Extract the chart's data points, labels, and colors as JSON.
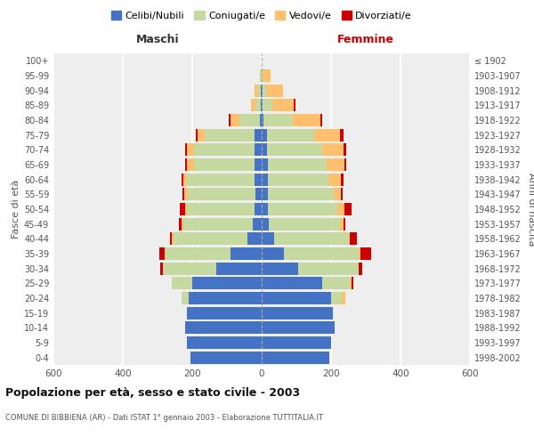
{
  "age_groups": [
    "0-4",
    "5-9",
    "10-14",
    "15-19",
    "20-24",
    "25-29",
    "30-34",
    "35-39",
    "40-44",
    "45-49",
    "50-54",
    "55-59",
    "60-64",
    "65-69",
    "70-74",
    "75-79",
    "80-84",
    "85-89",
    "90-94",
    "95-99",
    "100+"
  ],
  "birth_years": [
    "1998-2002",
    "1993-1997",
    "1988-1992",
    "1983-1987",
    "1978-1982",
    "1973-1977",
    "1968-1972",
    "1963-1967",
    "1958-1962",
    "1953-1957",
    "1948-1952",
    "1943-1947",
    "1938-1942",
    "1933-1937",
    "1928-1932",
    "1923-1927",
    "1918-1922",
    "1913-1917",
    "1908-1912",
    "1903-1907",
    "≤ 1902"
  ],
  "males": {
    "celibi": [
      205,
      215,
      220,
      215,
      210,
      200,
      130,
      90,
      40,
      25,
      20,
      18,
      20,
      20,
      20,
      20,
      5,
      2,
      2,
      0,
      0
    ],
    "coniugati": [
      0,
      0,
      0,
      0,
      20,
      60,
      155,
      190,
      215,
      200,
      195,
      195,
      195,
      175,
      175,
      145,
      60,
      15,
      8,
      2,
      0
    ],
    "vedovi": [
      0,
      0,
      0,
      0,
      0,
      0,
      0,
      0,
      5,
      5,
      5,
      10,
      10,
      20,
      20,
      20,
      25,
      15,
      10,
      2,
      0
    ],
    "divorziati": [
      0,
      0,
      0,
      0,
      0,
      0,
      8,
      15,
      5,
      8,
      15,
      5,
      5,
      5,
      5,
      5,
      5,
      0,
      0,
      0,
      0
    ]
  },
  "females": {
    "nubili": [
      195,
      200,
      210,
      205,
      200,
      175,
      105,
      65,
      35,
      20,
      18,
      18,
      18,
      18,
      15,
      15,
      5,
      2,
      2,
      0,
      0
    ],
    "coniugate": [
      0,
      0,
      0,
      0,
      30,
      80,
      175,
      215,
      215,
      205,
      200,
      190,
      175,
      170,
      160,
      135,
      85,
      30,
      10,
      5,
      0
    ],
    "vedove": [
      0,
      0,
      0,
      0,
      10,
      5,
      0,
      5,
      5,
      10,
      20,
      20,
      35,
      50,
      60,
      75,
      80,
      60,
      50,
      20,
      0
    ],
    "divorziate": [
      0,
      0,
      0,
      0,
      0,
      5,
      10,
      30,
      20,
      5,
      20,
      5,
      8,
      5,
      8,
      10,
      5,
      5,
      0,
      0,
      0
    ]
  },
  "colors": {
    "celibi": "#4472c4",
    "coniugati": "#c5d9a0",
    "vedovi": "#ffc06e",
    "divorziati": "#cc0000"
  },
  "xlim": 600,
  "title": "Popolazione per età, sesso e stato civile - 2003",
  "subtitle": "COMUNE DI BIBBIENA (AR) - Dati ISTAT 1° gennaio 2003 - Elaborazione TUTTITALIA.IT",
  "xlabel_left": "Maschi",
  "xlabel_right": "Femmine",
  "ylabel_left": "Fasce di età",
  "ylabel_right": "Anni di nascita",
  "legend_labels": [
    "Celibi/Nubili",
    "Coniugati/e",
    "Vedovi/e",
    "Divorziati/e"
  ],
  "bg_color": "#ffffff",
  "plot_bg_color": "#eeeeee"
}
